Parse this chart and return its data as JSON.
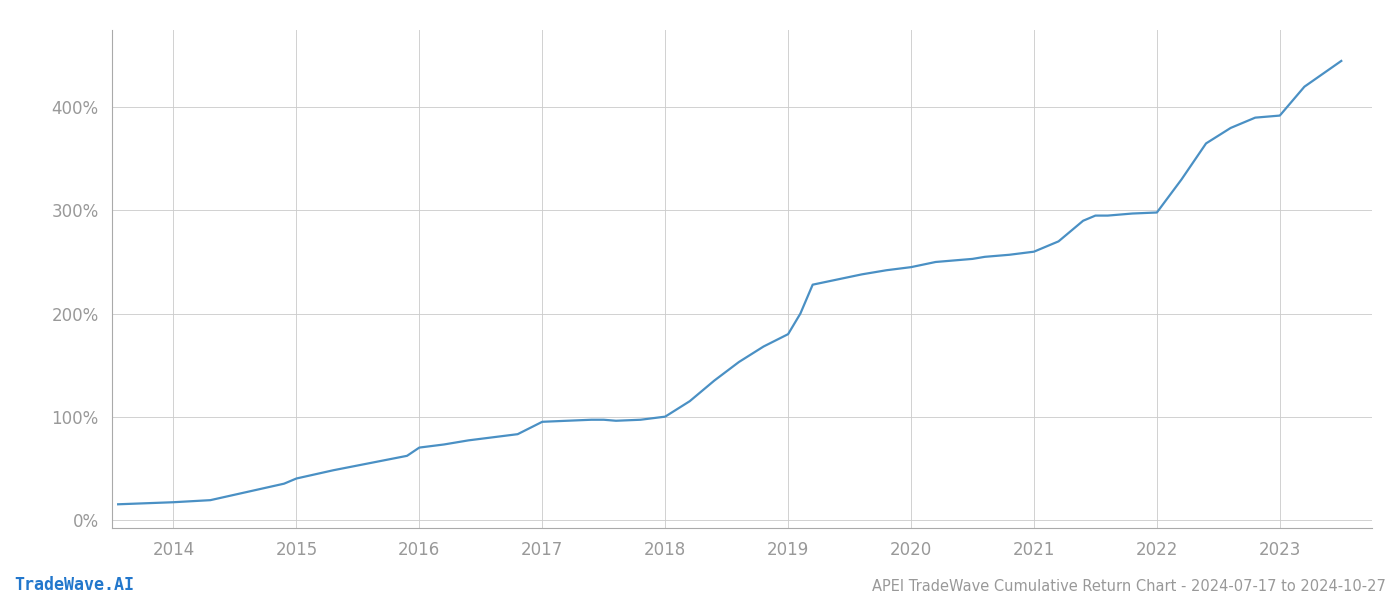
{
  "title": "APEI TradeWave Cumulative Return Chart - 2024-07-17 to 2024-10-27",
  "watermark": "TradeWave.AI",
  "line_color": "#4a90c4",
  "background_color": "#ffffff",
  "grid_color": "#cccccc",
  "x_years": [
    2013.55,
    2014.0,
    2014.3,
    2014.6,
    2014.9,
    2015.0,
    2015.3,
    2015.6,
    2015.9,
    2016.0,
    2016.2,
    2016.4,
    2016.6,
    2016.8,
    2017.0,
    2017.2,
    2017.4,
    2017.5,
    2017.6,
    2017.8,
    2018.0,
    2018.2,
    2018.4,
    2018.6,
    2018.8,
    2019.0,
    2019.1,
    2019.2,
    2019.4,
    2019.6,
    2019.8,
    2020.0,
    2020.2,
    2020.4,
    2020.5,
    2020.6,
    2020.8,
    2021.0,
    2021.2,
    2021.4,
    2021.5,
    2021.6,
    2021.8,
    2022.0,
    2022.2,
    2022.4,
    2022.6,
    2022.8,
    2023.0,
    2023.2,
    2023.5
  ],
  "y_values": [
    0.15,
    0.17,
    0.19,
    0.27,
    0.35,
    0.4,
    0.48,
    0.55,
    0.62,
    0.7,
    0.73,
    0.77,
    0.8,
    0.83,
    0.95,
    0.96,
    0.97,
    0.97,
    0.96,
    0.97,
    1.0,
    1.15,
    1.35,
    1.53,
    1.68,
    1.8,
    2.0,
    2.28,
    2.33,
    2.38,
    2.42,
    2.45,
    2.5,
    2.52,
    2.53,
    2.55,
    2.57,
    2.6,
    2.7,
    2.9,
    2.95,
    2.95,
    2.97,
    2.98,
    3.3,
    3.65,
    3.8,
    3.9,
    3.92,
    4.2,
    4.45
  ],
  "xlim": [
    2013.5,
    2023.75
  ],
  "ylim": [
    -0.08,
    4.75
  ],
  "yticks": [
    0,
    1,
    2,
    3,
    4
  ],
  "ytick_labels": [
    "0%",
    "100%",
    "200%",
    "300%",
    "400%"
  ],
  "xticks": [
    2014,
    2015,
    2016,
    2017,
    2018,
    2019,
    2020,
    2021,
    2022,
    2023
  ],
  "title_fontsize": 10.5,
  "tick_fontsize": 12,
  "watermark_fontsize": 12,
  "line_width": 1.6
}
